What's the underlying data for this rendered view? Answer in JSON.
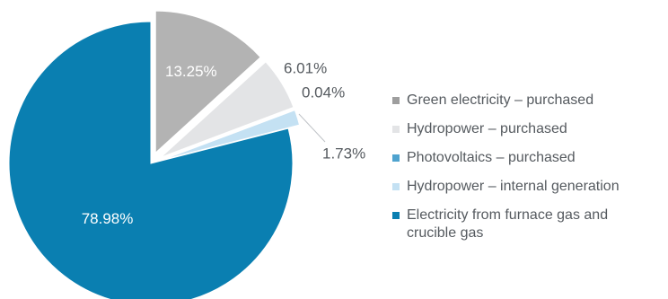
{
  "chart_data": {
    "type": "pie",
    "slices": [
      {
        "label": "Green electricity – purchased",
        "value": 13.25,
        "value_label": "13.25%",
        "color": "#b3b3b3",
        "label_color": "#ffffff",
        "exploded": true
      },
      {
        "label": "Hydropower – purchased",
        "value": 6.01,
        "value_label": "6.01%",
        "color": "#e3e4e6",
        "label_color": "#555a5f",
        "exploded": true
      },
      {
        "label": "Photovoltaics – purchased",
        "value": 0.04,
        "value_label": "0.04%",
        "color": "#4fa3cf",
        "label_color": "#555a5f",
        "exploded": true
      },
      {
        "label": "Hydropower – internal generation",
        "value": 1.73,
        "value_label": "1.73%",
        "color": "#c4e1f3",
        "label_color": "#555a5f",
        "exploded": true
      },
      {
        "label": "Electricity from furnace gas and crucible gas",
        "value": 78.98,
        "value_label": "78.98%",
        "color": "#0a7fb1",
        "label_color": "#ffffff",
        "exploded": false
      }
    ],
    "legend_position": "right",
    "start_angle_deg": 0,
    "direction": "clockwise"
  },
  "legend": {
    "items": [
      {
        "label": "Green electricity – purchased",
        "color": "#9e9e9e"
      },
      {
        "label": "Hydropower – purchased",
        "color": "#e3e4e6"
      },
      {
        "label": "Photovoltaics – purchased",
        "color": "#4fa3cf"
      },
      {
        "label": "Hydropower – internal generation",
        "color": "#c4e1f3"
      },
      {
        "label": "Electricity from furnace gas and crucible gas",
        "color": "#0a7fb1"
      }
    ]
  }
}
